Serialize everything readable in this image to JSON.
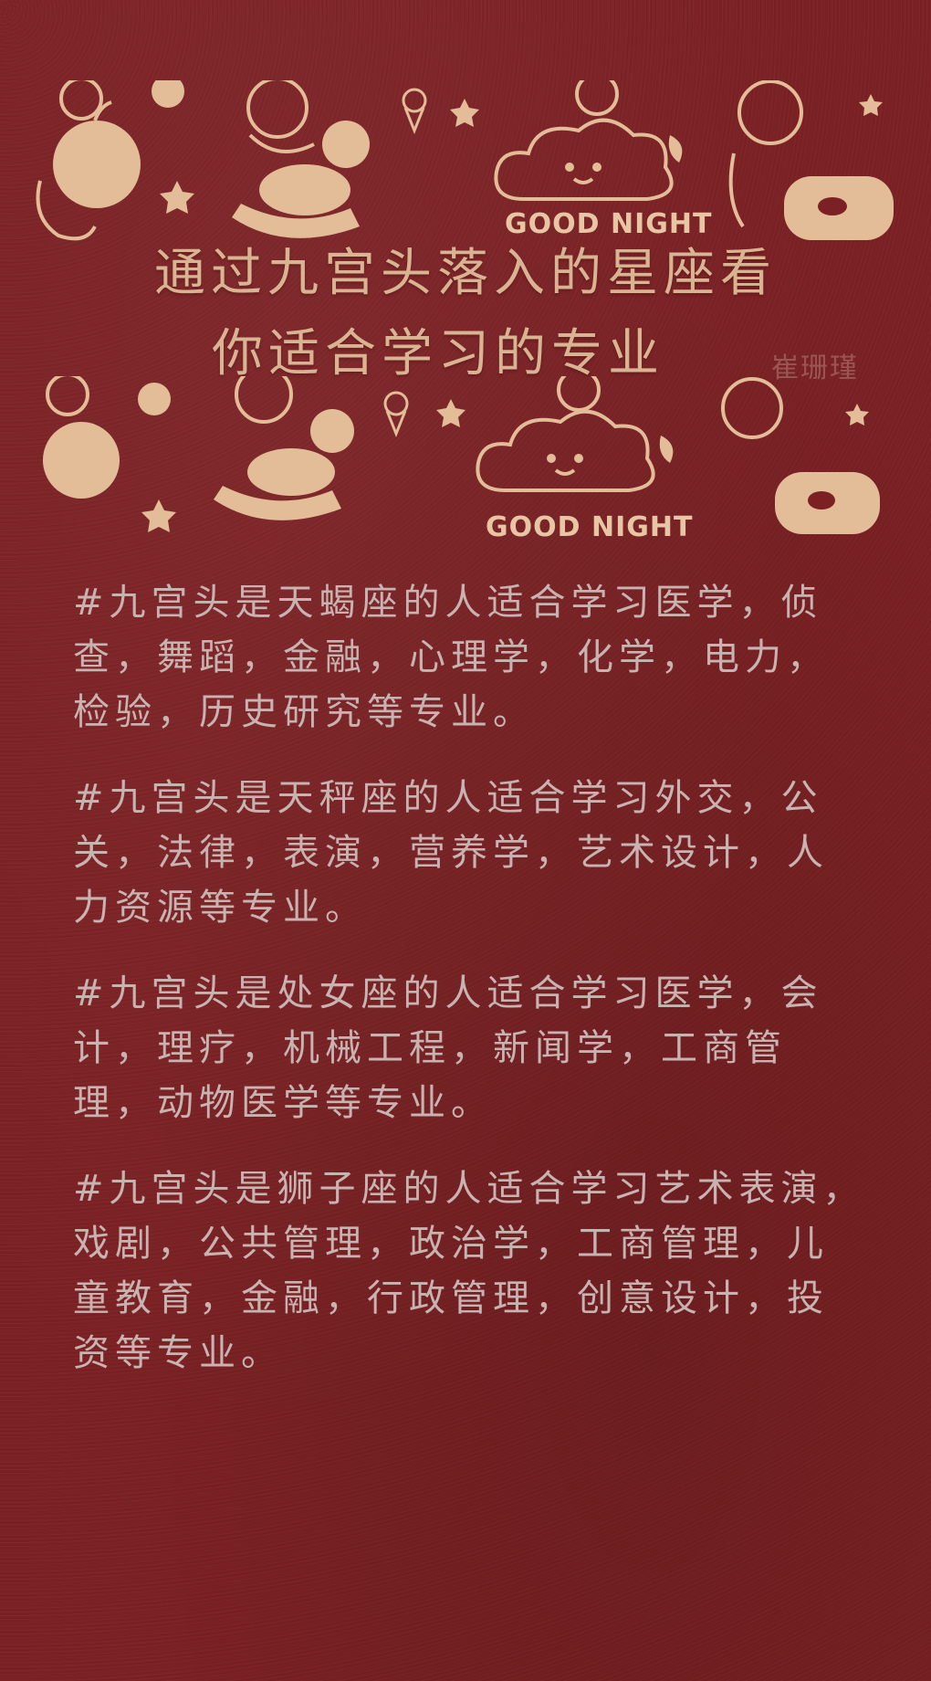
{
  "title": {
    "line1": "通过九宫头落入的星座看",
    "line2": "你适合学习的专业"
  },
  "watermark": "崔珊瑾",
  "decoration": {
    "good_night_top": "GOOD NIGHT",
    "good_night_bottom": "GOOD NIGHT"
  },
  "colors": {
    "background": "#7b2124",
    "doodle": "#e3bc98",
    "title": "#d9b492",
    "body_text": "#c9b3b1"
  },
  "paragraphs": [
    "#九宫头是天蝎座的人适合学习医学，侦查，舞蹈，金融，心理学，化学，电力，检验，历史研究等专业。",
    "#九宫头是天秤座的人适合学习外交，公关，法律，表演，营养学，艺术设计，人力资源等专业。",
    "#九宫头是处女座的人适合学习医学，会计，理疗，机械工程，新闻学，工商管理，动物医学等专业。",
    "#九宫头是狮子座的人适合学习艺术表演，戏剧，公共管理，政治学，工商管理，儿童教育，金融，行政管理，创意设计，投资等专业。"
  ]
}
